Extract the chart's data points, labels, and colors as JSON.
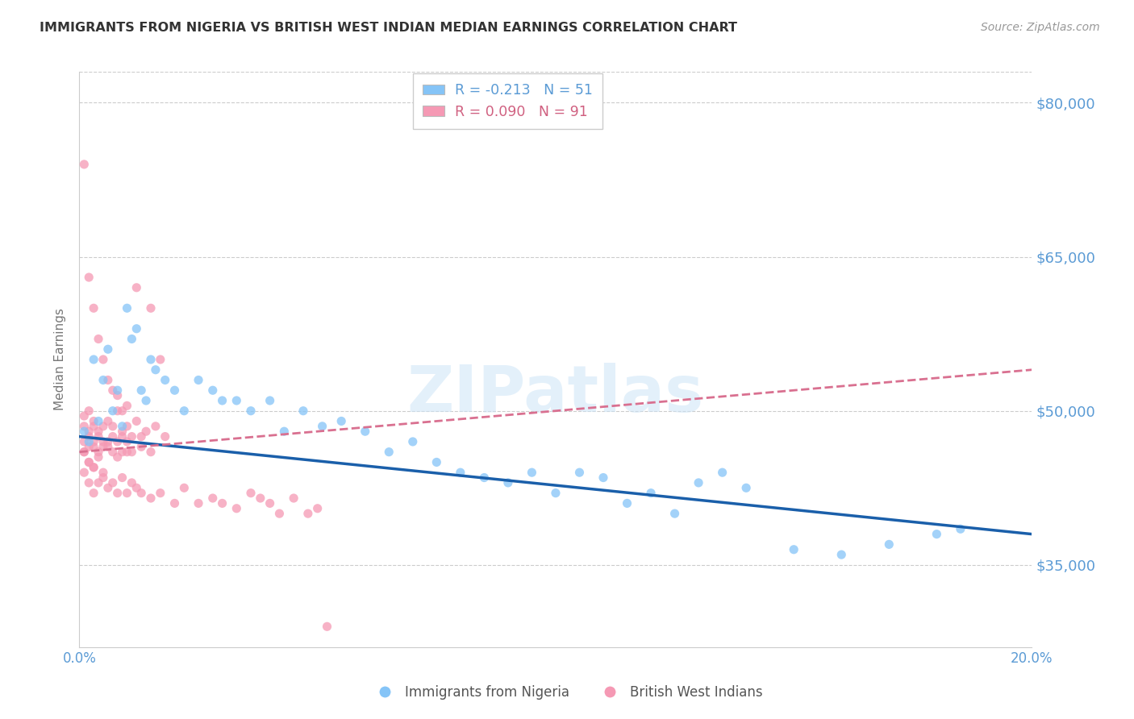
{
  "title": "IMMIGRANTS FROM NIGERIA VS BRITISH WEST INDIAN MEDIAN EARNINGS CORRELATION CHART",
  "source": "Source: ZipAtlas.com",
  "ylabel": "Median Earnings",
  "y_ticks": [
    35000,
    50000,
    65000,
    80000
  ],
  "y_tick_labels": [
    "$35,000",
    "$50,000",
    "$65,000",
    "$80,000"
  ],
  "xlim": [
    0.0,
    0.2
  ],
  "ylim": [
    27000,
    83000
  ],
  "blue_color": "#85c4f7",
  "pink_color": "#f599b4",
  "blue_line_color": "#1a5faa",
  "pink_line_color": "#d97090",
  "axis_label_color": "#5b9bd5",
  "title_color": "#333333",
  "legend_R_nigeria": "R = -0.213",
  "legend_N_nigeria": "N = 51",
  "legend_R_bwi": "R = 0.090",
  "legend_N_bwi": "N = 91",
  "legend_label_nigeria": "Immigrants from Nigeria",
  "legend_label_bwi": "British West Indians",
  "watermark": "ZIPatlas",
  "nigeria_x": [
    0.001,
    0.002,
    0.003,
    0.004,
    0.005,
    0.006,
    0.007,
    0.008,
    0.009,
    0.01,
    0.011,
    0.012,
    0.013,
    0.014,
    0.015,
    0.016,
    0.018,
    0.02,
    0.022,
    0.025,
    0.028,
    0.03,
    0.033,
    0.036,
    0.04,
    0.043,
    0.047,
    0.051,
    0.055,
    0.06,
    0.065,
    0.07,
    0.075,
    0.08,
    0.085,
    0.09,
    0.095,
    0.1,
    0.105,
    0.11,
    0.115,
    0.12,
    0.125,
    0.13,
    0.135,
    0.14,
    0.15,
    0.16,
    0.17,
    0.18,
    0.185
  ],
  "nigeria_y": [
    48000,
    47000,
    55000,
    49000,
    53000,
    56000,
    50000,
    52000,
    48500,
    60000,
    57000,
    58000,
    52000,
    51000,
    55000,
    54000,
    53000,
    52000,
    50000,
    53000,
    52000,
    51000,
    51000,
    50000,
    51000,
    48000,
    50000,
    48500,
    49000,
    48000,
    46000,
    47000,
    45000,
    44000,
    43500,
    43000,
    44000,
    42000,
    44000,
    43500,
    41000,
    42000,
    40000,
    43000,
    44000,
    42500,
    36500,
    36000,
    37000,
    38000,
    38500
  ],
  "bwi_x": [
    0.001,
    0.001,
    0.001,
    0.001,
    0.001,
    0.002,
    0.002,
    0.002,
    0.002,
    0.002,
    0.003,
    0.003,
    0.003,
    0.003,
    0.003,
    0.004,
    0.004,
    0.004,
    0.004,
    0.005,
    0.005,
    0.005,
    0.005,
    0.006,
    0.006,
    0.006,
    0.007,
    0.007,
    0.007,
    0.008,
    0.008,
    0.008,
    0.009,
    0.009,
    0.009,
    0.01,
    0.01,
    0.01,
    0.011,
    0.011,
    0.012,
    0.012,
    0.013,
    0.013,
    0.014,
    0.015,
    0.015,
    0.016,
    0.017,
    0.018,
    0.001,
    0.002,
    0.003,
    0.004,
    0.005,
    0.006,
    0.007,
    0.008,
    0.009,
    0.01,
    0.001,
    0.002,
    0.002,
    0.003,
    0.003,
    0.004,
    0.005,
    0.006,
    0.007,
    0.008,
    0.009,
    0.01,
    0.011,
    0.012,
    0.013,
    0.015,
    0.017,
    0.02,
    0.022,
    0.025,
    0.028,
    0.03,
    0.033,
    0.036,
    0.038,
    0.04,
    0.042,
    0.045,
    0.048,
    0.05,
    0.052
  ],
  "bwi_y": [
    47000,
    48500,
    46000,
    49500,
    44000,
    47500,
    48000,
    46500,
    50000,
    45000,
    47000,
    46500,
    48500,
    44500,
    49000,
    47500,
    46000,
    48000,
    45500,
    47000,
    46500,
    48500,
    44000,
    47000,
    46500,
    49000,
    47500,
    46000,
    48500,
    47000,
    45500,
    50000,
    47500,
    46000,
    48000,
    47000,
    48500,
    46000,
    47500,
    46000,
    62000,
    49000,
    47500,
    46500,
    48000,
    46000,
    60000,
    48500,
    55000,
    47500,
    74000,
    63000,
    60000,
    57000,
    55000,
    53000,
    52000,
    51500,
    50000,
    50500,
    46000,
    45000,
    43000,
    44500,
    42000,
    43000,
    43500,
    42500,
    43000,
    42000,
    43500,
    42000,
    43000,
    42500,
    42000,
    41500,
    42000,
    41000,
    42500,
    41000,
    41500,
    41000,
    40500,
    42000,
    41500,
    41000,
    40000,
    41500,
    40000,
    40500,
    29000
  ],
  "nigeria_line_x0": 0.0,
  "nigeria_line_y0": 47500,
  "nigeria_line_x1": 0.2,
  "nigeria_line_y1": 38000,
  "bwi_line_x0": 0.0,
  "bwi_line_y0": 46000,
  "bwi_line_x1": 0.2,
  "bwi_line_y1": 54000
}
